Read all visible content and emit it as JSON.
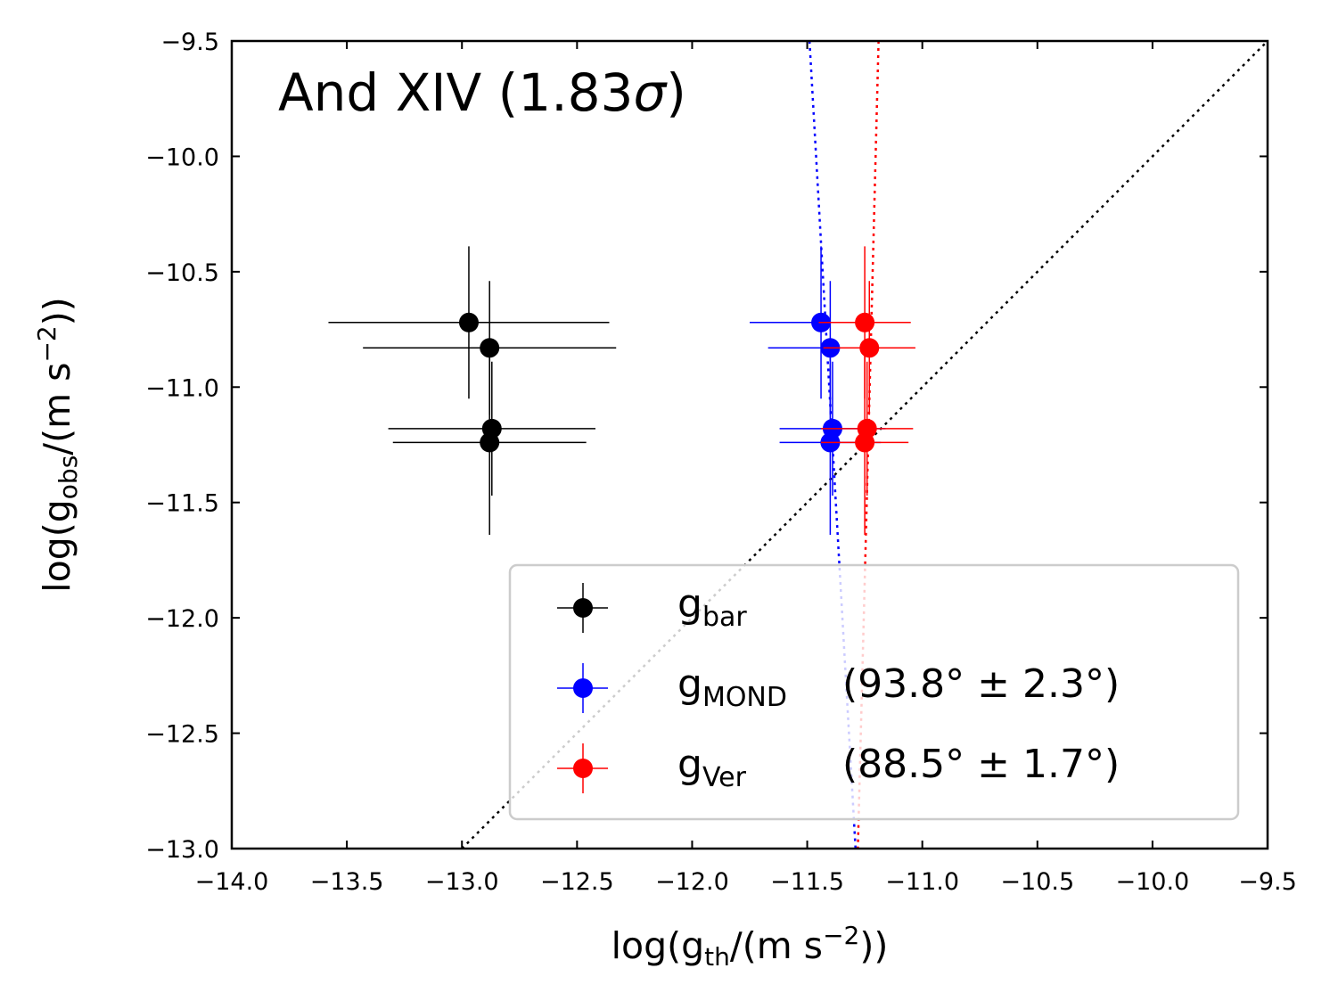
{
  "chart_data": {
    "type": "scatter",
    "annotation": {
      "name": "And XIV",
      "sigma_value": "1.83",
      "sigma_symbol": "σ"
    },
    "xlabel": {
      "prefix": "log(g",
      "sub": "th",
      "mid": "/(m s",
      "sup": "−2",
      "suffix": "))"
    },
    "ylabel": {
      "prefix": "log(g",
      "sub": "obs",
      "mid": "/(m s",
      "sup": "−2",
      "suffix": "))"
    },
    "xlim": [
      -14.0,
      -9.5
    ],
    "ylim": [
      -13.0,
      -9.5
    ],
    "xticks": [
      -14.0,
      -13.5,
      -13.0,
      -12.5,
      -12.0,
      -11.5,
      -11.0,
      -10.5,
      -10.0,
      -9.5
    ],
    "xtick_labels": [
      "−14.0",
      "−13.5",
      "−13.0",
      "−12.5",
      "−12.0",
      "−11.5",
      "−11.0",
      "−10.5",
      "−10.0",
      "−9.5"
    ],
    "yticks": [
      -9.5,
      -10.0,
      -10.5,
      -11.0,
      -11.5,
      -12.0,
      -12.5,
      -13.0
    ],
    "ytick_labels": [
      "−9.5",
      "−10.0",
      "−10.5",
      "−11.0",
      "−11.5",
      "−12.0",
      "−12.5",
      "−13.0"
    ],
    "identity_line": {
      "style": "dotted",
      "color": "#000000"
    },
    "legend_position": "lower-right",
    "series": [
      {
        "name": "g_bar",
        "legend_base": "g",
        "legend_sub": "bar",
        "legend_extra": "",
        "color": "#000000",
        "points": [
          {
            "x": -12.97,
            "y": -10.72,
            "xerr": 0.61,
            "yerr": 0.33
          },
          {
            "x": -12.88,
            "y": -10.83,
            "xerr": 0.55,
            "yerr": 0.29
          },
          {
            "x": -12.87,
            "y": -11.18,
            "xerr": 0.45,
            "yerr": 0.29
          },
          {
            "x": -12.88,
            "y": -11.24,
            "xerr": 0.42,
            "yerr": 0.4
          }
        ]
      },
      {
        "name": "g_MOND",
        "legend_base": "g",
        "legend_sub": "MOND",
        "legend_extra": "(93.8° ± 2.3°)",
        "color": "#0000ff",
        "fit_line": {
          "x1": -11.49,
          "y1": -9.5,
          "x2": -11.29,
          "y2": -13.0
        },
        "points": [
          {
            "x": -11.44,
            "y": -10.72,
            "xerr": 0.31,
            "yerr": 0.33
          },
          {
            "x": -11.4,
            "y": -10.83,
            "xerr": 0.27,
            "yerr": 0.29
          },
          {
            "x": -11.39,
            "y": -11.18,
            "xerr": 0.23,
            "yerr": 0.29
          },
          {
            "x": -11.4,
            "y": -11.24,
            "xerr": 0.22,
            "yerr": 0.4
          }
        ]
      },
      {
        "name": "g_Ver",
        "legend_base": "g",
        "legend_sub": "Ver",
        "legend_extra": "(88.5° ± 1.7°)",
        "color": "#ff0000",
        "fit_line": {
          "x1": -11.19,
          "y1": -9.5,
          "x2": -11.28,
          "y2": -13.0
        },
        "points": [
          {
            "x": -11.25,
            "y": -10.72,
            "xerr": 0.2,
            "yerr": 0.33
          },
          {
            "x": -11.23,
            "y": -10.83,
            "xerr": 0.2,
            "yerr": 0.29
          },
          {
            "x": -11.24,
            "y": -11.18,
            "xerr": 0.2,
            "yerr": 0.29
          },
          {
            "x": -11.25,
            "y": -11.24,
            "xerr": 0.19,
            "yerr": 0.4
          }
        ]
      }
    ]
  }
}
